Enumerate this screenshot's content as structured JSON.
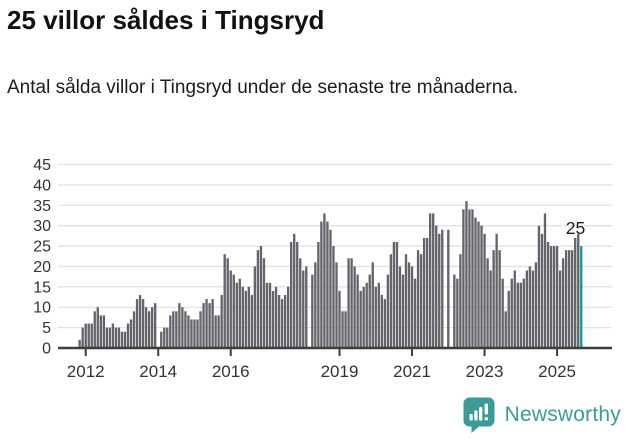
{
  "header": {
    "title": "25 villor såldes i Tingsryd",
    "subtitle": "Antal sålda villor i Tingsryd under de senaste tre månaderna."
  },
  "chart_data": {
    "type": "bar",
    "title": "25 villor såldes i Tingsryd",
    "subtitle": "Antal sålda villor i Tingsryd under de senaste tre månaderna.",
    "unit": "sålda villor (rullande tre månader)",
    "frequency": "monthly",
    "start_month": "2011-11",
    "end_month": "2025-09",
    "values": [
      2,
      5,
      6,
      6,
      6,
      9,
      10,
      8,
      8,
      5,
      5,
      6,
      5,
      5,
      4,
      4,
      6,
      7,
      9,
      12,
      13,
      12,
      10,
      9,
      10,
      11,
      0,
      4,
      5,
      5,
      8,
      9,
      9,
      11,
      10,
      9,
      8,
      7,
      7,
      7,
      9,
      11,
      12,
      11,
      12,
      8,
      8,
      13,
      23,
      22,
      19,
      18,
      16,
      17,
      15,
      14,
      15,
      13,
      20,
      24,
      25,
      22,
      16,
      16,
      14,
      15,
      13,
      12,
      13,
      15,
      26,
      28,
      26,
      22,
      19,
      20,
      0,
      18,
      21,
      26,
      31,
      33,
      31,
      29,
      25,
      21,
      14,
      9,
      9,
      22,
      22,
      20,
      18,
      14,
      15,
      16,
      18,
      21,
      15,
      16,
      13,
      12,
      18,
      23,
      26,
      26,
      20,
      18,
      23,
      21,
      20,
      17,
      24,
      23,
      27,
      27,
      33,
      33,
      30,
      28,
      29,
      0,
      29,
      0,
      18,
      17,
      23,
      34,
      36,
      34,
      34,
      32,
      31,
      30,
      28,
      22,
      19,
      24,
      28,
      24,
      17,
      9,
      14,
      17,
      19,
      16,
      16,
      17,
      19,
      20,
      19,
      21,
      30,
      28,
      33,
      26,
      25,
      25,
      25,
      19,
      22,
      24,
      24,
      24,
      27,
      28,
      25
    ],
    "highlight": {
      "index_from_end": 0,
      "value": 25,
      "label": "25"
    },
    "yticks": [
      0,
      5,
      10,
      15,
      20,
      25,
      30,
      35,
      40,
      45
    ],
    "ylim": [
      0,
      45
    ],
    "xtick_years": [
      2012,
      2014,
      2016,
      2019,
      2021,
      2023,
      2025
    ],
    "grid": true,
    "legend": "none",
    "colors": {
      "bar": "#64646c",
      "highlight": "#119a8f",
      "gridline": "#e2e2e2",
      "axis": "#3d3d3d",
      "tick_label": "#333333",
      "annotation": "#1c1c1c"
    }
  },
  "footer": {
    "brand": "Newsworthy",
    "brand_color": "#3a9c94",
    "logo_icon": "bar-chart-pin-icon"
  }
}
